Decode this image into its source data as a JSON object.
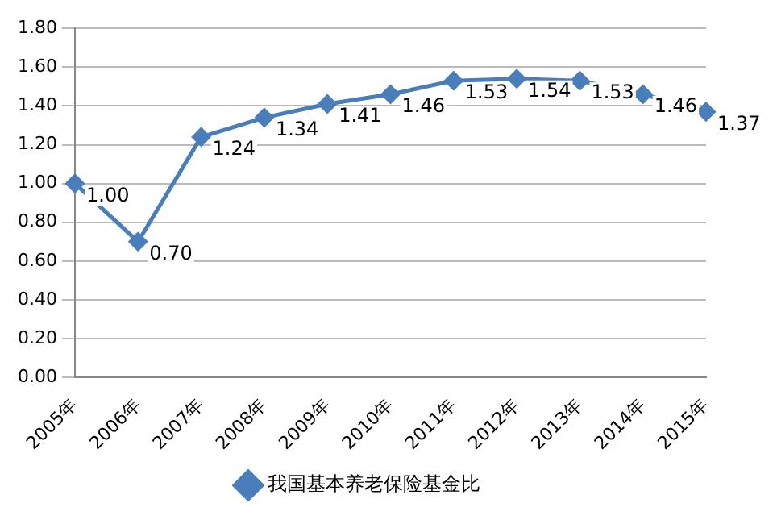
{
  "chart_data": {
    "type": "line",
    "categories": [
      "2005年",
      "2006年",
      "2007年",
      "2008年",
      "2009年",
      "2010年",
      "2011年",
      "2012年",
      "2013年",
      "2014年",
      "2015年"
    ],
    "series": [
      {
        "name": "我国基本养老保险基金比",
        "color": "#4a7ebb",
        "values": [
          1.0,
          0.7,
          1.24,
          1.34,
          1.41,
          1.46,
          1.53,
          1.54,
          1.53,
          1.46,
          1.37
        ],
        "value_labels": [
          "1.00",
          "0.70",
          "1.24",
          "1.34",
          "1.41",
          "1.46",
          "1.53",
          "1.54",
          "1.53",
          "1.46",
          "1.37"
        ]
      }
    ],
    "ylim": [
      0,
      1.8
    ],
    "yticks": [
      {
        "value": 0,
        "label": "0.00"
      },
      {
        "value": 0.2,
        "label": "0.20"
      },
      {
        "value": 0.4,
        "label": "0.40"
      },
      {
        "value": 0.6,
        "label": "0.60"
      },
      {
        "value": 0.8,
        "label": "0.80"
      },
      {
        "value": 1,
        "label": "1.00"
      },
      {
        "value": 1.2,
        "label": "1.20"
      },
      {
        "value": 1.4,
        "label": "1.40"
      },
      {
        "value": 1.6,
        "label": "1.60"
      },
      {
        "value": 1.8,
        "label": "1.80"
      }
    ],
    "grid": "y",
    "legend": "bottom",
    "marker": "diamond",
    "line_style": "solid"
  }
}
